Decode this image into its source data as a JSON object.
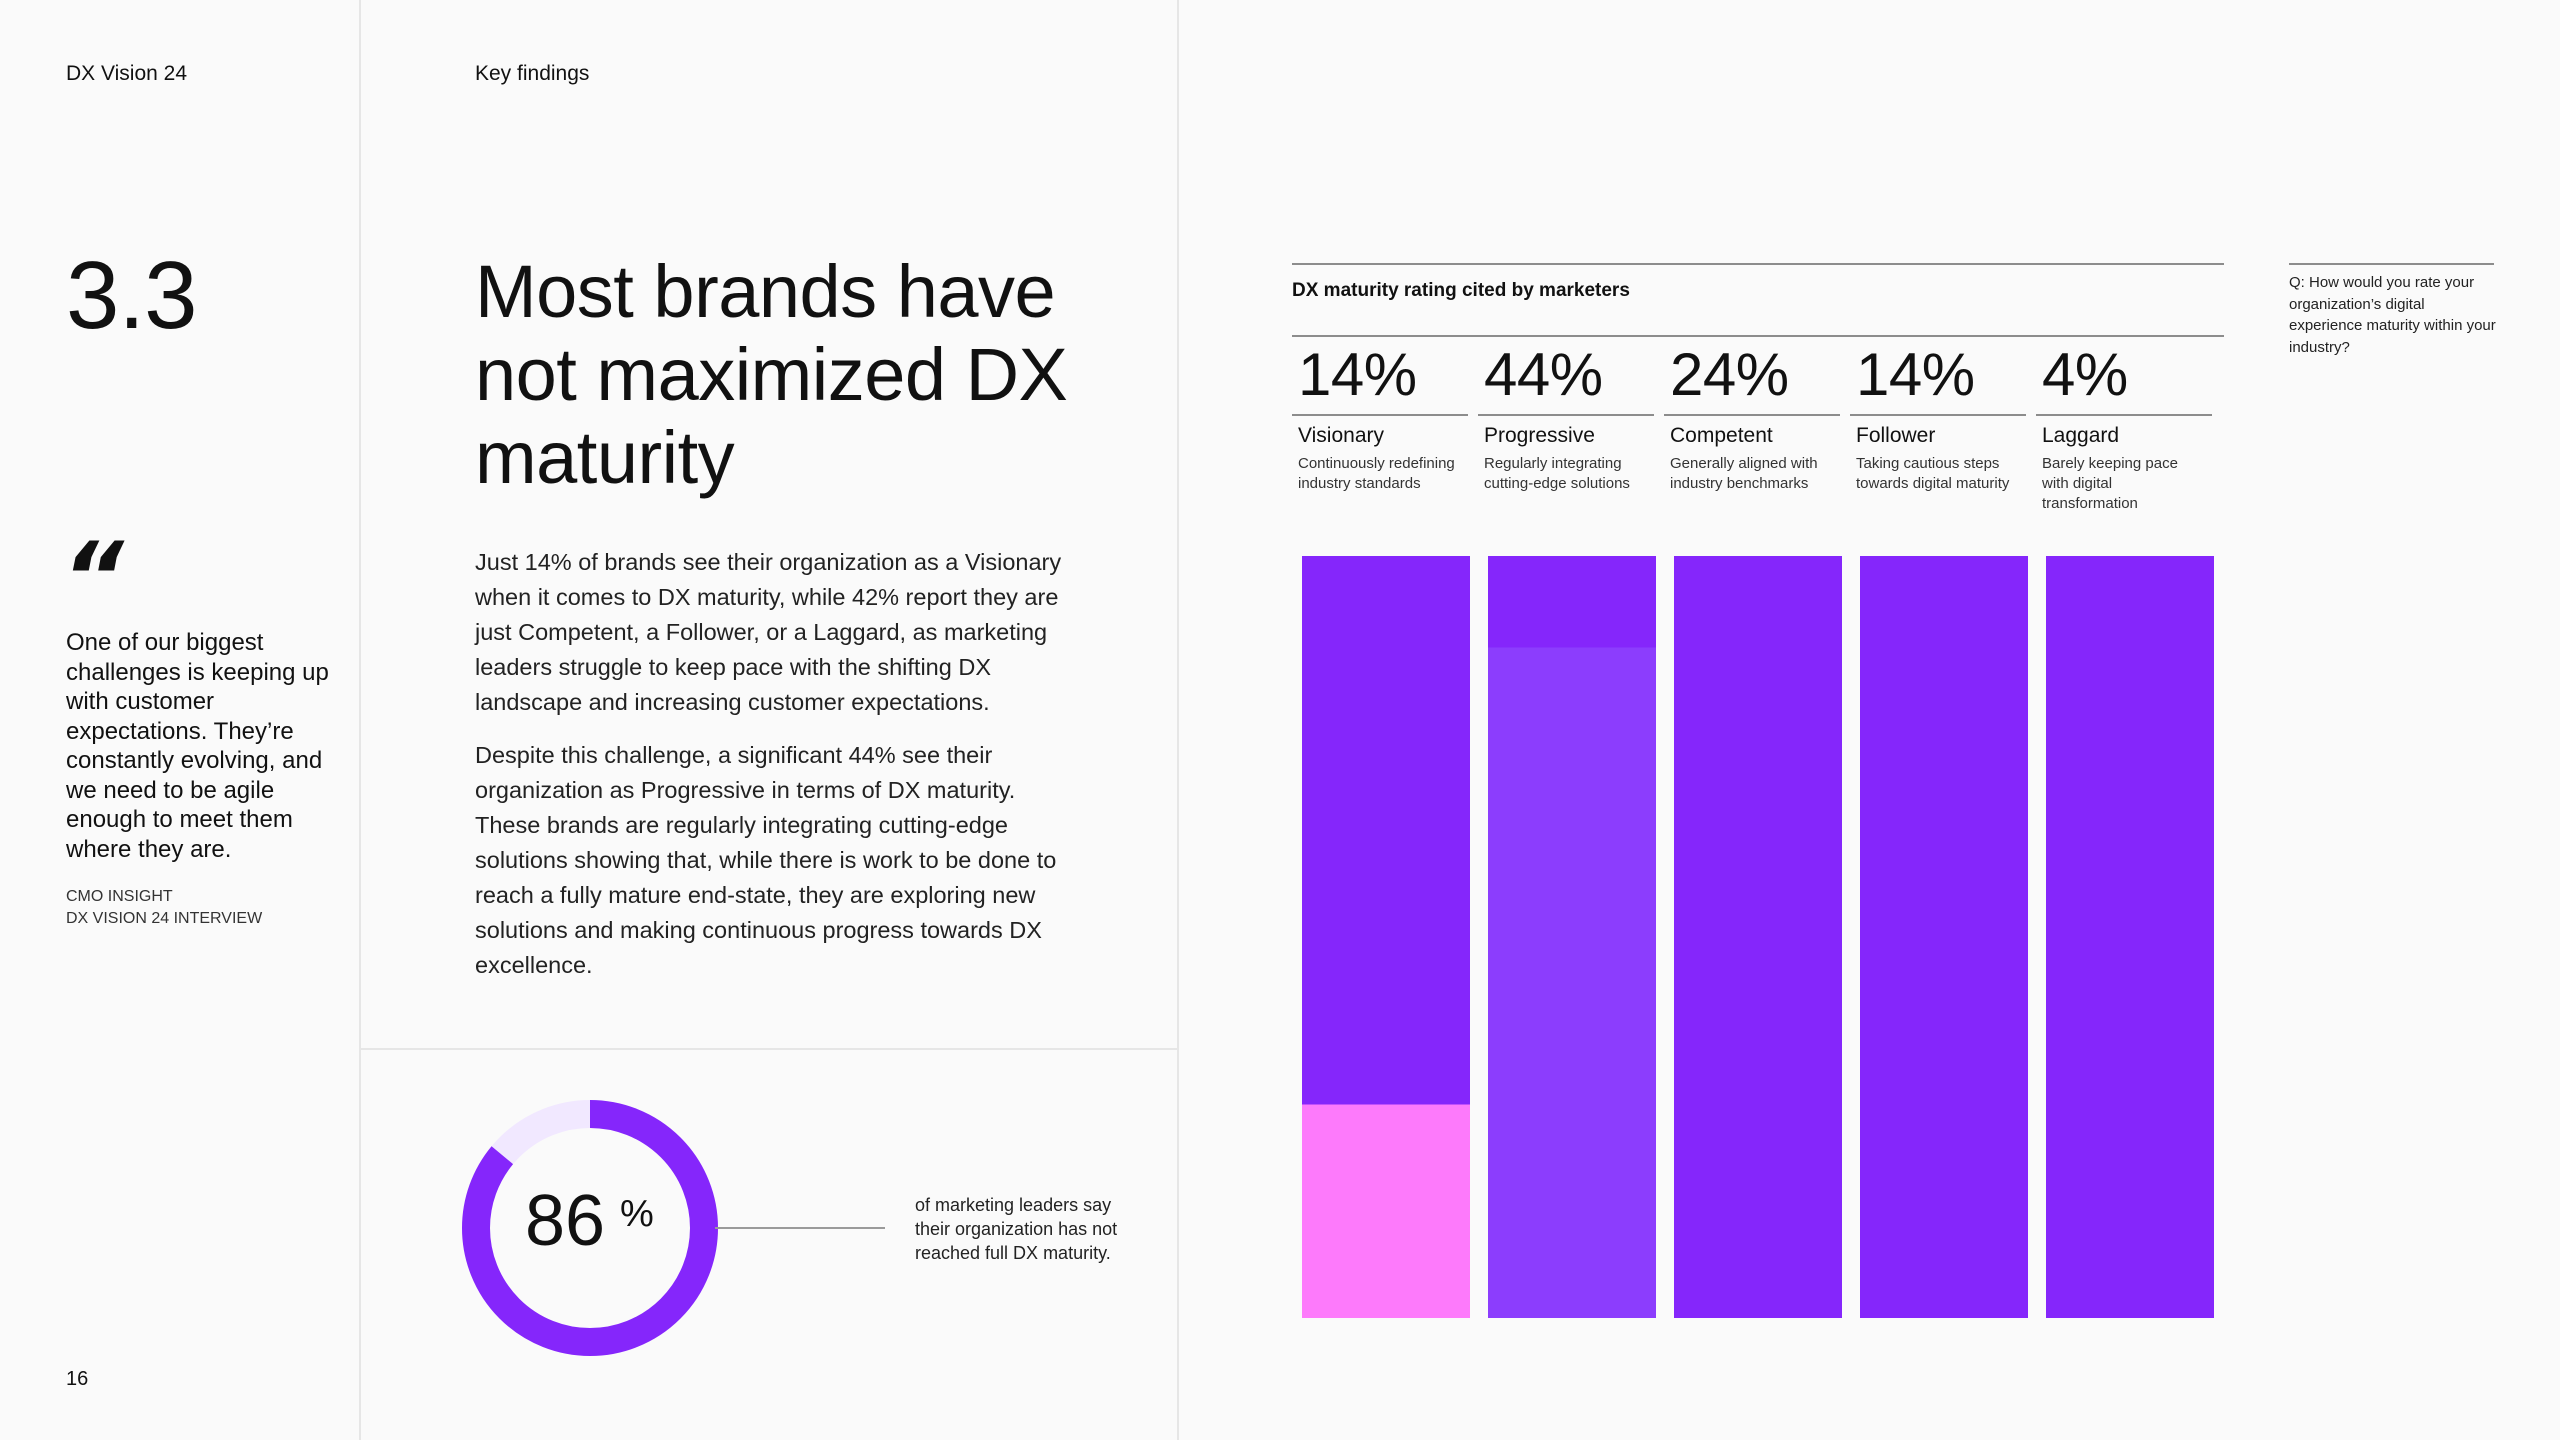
{
  "header": {
    "brand": "DX Vision 24",
    "section_label": "Key findings"
  },
  "section_number": "3.3",
  "quote": {
    "mark": "“",
    "text": "One of our biggest challenges is keeping up with customer expectations. They’re constantly evolving, and we need to be agile enough to meet them where they are.",
    "source_line1": "CMO INSIGHT",
    "source_line2": "DX VISION 24 INTERVIEW"
  },
  "page_number": "16",
  "headline": "Most brands have not maximized DX maturity",
  "paragraphs": [
    "Just 14% of brands see their organization as a Visionary when it comes to DX maturity, while 42% report they are just Competent, a Follower, or a Laggard, as marketing leaders struggle to keep pace with the shifting DX landscape and increasing customer expectations.",
    "Despite this challenge, a significant 44% see their organization as Progressive in terms of DX maturity. These brands are regularly integrating cutting-edge solutions showing that, while there is work to be done to reach a fully mature end-state, they are exploring new solutions and making continuous progress towards DX excellence."
  ],
  "stat": {
    "value": "86",
    "unit": "%",
    "percent": 86,
    "caption": "of marketing leaders say their organization has not reached full DX maturity."
  },
  "question": "Q: How would you rate your organization’s digital experience maturity within your industry?",
  "colors": {
    "purple": "#8526fb",
    "purple_light": "#8c3dfd",
    "pink": "#fd7afb",
    "ring_bg": "#f1e8ff"
  },
  "chart_data": {
    "type": "bar",
    "title": "DX maturity rating cited by marketers",
    "categories": [
      "Visionary",
      "Progressive",
      "Competent",
      "Follower",
      "Laggard"
    ],
    "values": [
      14,
      44,
      24,
      14,
      4
    ],
    "labels": [
      "14%",
      "44%",
      "24%",
      "14%",
      "4%"
    ],
    "descriptions": [
      "Continuously redefining industry standards",
      "Regularly integrating cutting-edge solutions",
      "Generally aligned with industry benchmarks",
      "Taking cautious steps towards digital maturity",
      "Barely keeping pace with digital transformation"
    ],
    "highlights": [
      {
        "category": "Visionary",
        "color": "#fd7afb",
        "fraction_of_bar": 0.28
      },
      {
        "category": "Progressive",
        "color": "#8c3dfd",
        "fraction_of_bar": 0.88
      }
    ]
  }
}
